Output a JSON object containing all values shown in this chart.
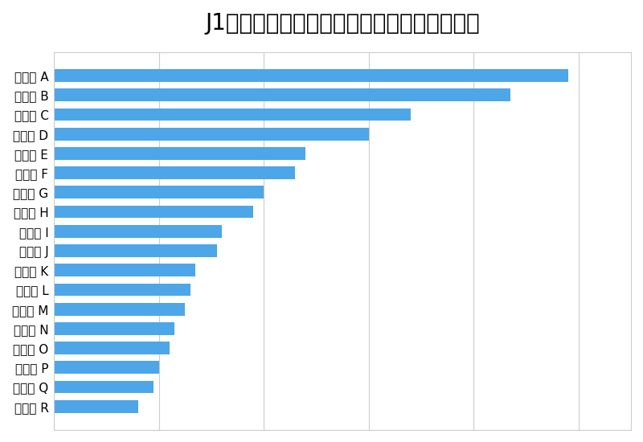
{
  "title": "J1のクラブ別お気に入り登録者数ランキング",
  "categories": [
    "クラブ A",
    "クラブ B",
    "クラブ C",
    "クラブ D",
    "クラブ E",
    "クラブ F",
    "クラブ G",
    "クラブ H",
    "クラブ I",
    "クラブ J",
    "クラブ K",
    "クラブ L",
    "クラブ M",
    "クラブ N",
    "クラブ O",
    "クラブ P",
    "クラブ Q",
    "クラブ R"
  ],
  "values": [
    98,
    87,
    68,
    60,
    48,
    46,
    40,
    38,
    32,
    31,
    27,
    26,
    25,
    23,
    22,
    20,
    19,
    16
  ],
  "bar_color": "#4DA6E8",
  "background_color": "#ffffff",
  "title_fontsize": 20,
  "label_fontsize": 11,
  "xlim": [
    0,
    110
  ],
  "grid_color": "#cccccc",
  "grid_positions": [
    0,
    20,
    40,
    60,
    80,
    100
  ],
  "bar_height": 0.65,
  "spine_color": "#cccccc"
}
